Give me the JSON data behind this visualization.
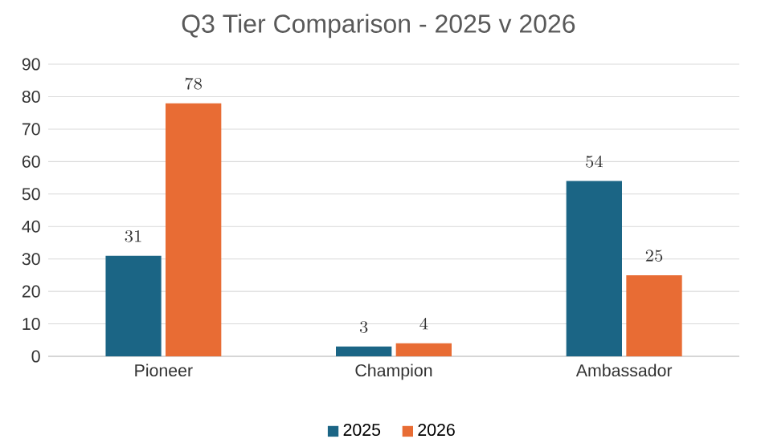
{
  "chart_data": {
    "type": "bar",
    "title": "Q3 Tier Comparison  - 2025 v 2026",
    "categories": [
      "Pioneer",
      "Champion",
      "Ambassador"
    ],
    "series": [
      {
        "name": "2025",
        "color": "#1b6585",
        "values": [
          31,
          3,
          54
        ]
      },
      {
        "name": "2026",
        "color": "#e86c34",
        "values": [
          78,
          4,
          25
        ]
      }
    ],
    "ylim": [
      0,
      90
    ],
    "yticks": [
      0,
      10,
      20,
      30,
      40,
      50,
      60,
      70,
      80,
      90
    ],
    "grid": "y",
    "legend": "bottom",
    "data_labels": true
  }
}
